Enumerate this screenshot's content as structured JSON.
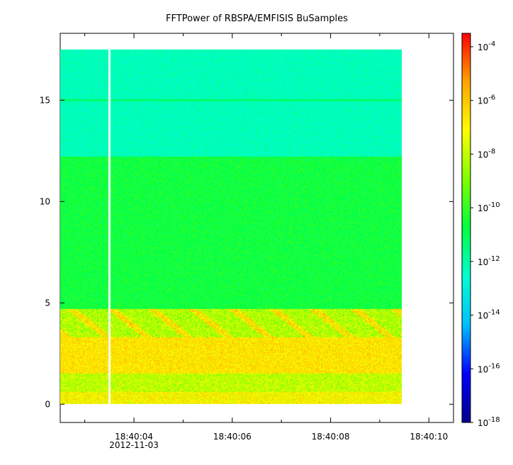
{
  "chart_data": {
    "type": "heatmap",
    "title": "FFTPower of RBSPA/EMFISIS  BuSamples",
    "xlabel": "",
    "ylabel": "",
    "x_ticks": [
      {
        "label": "18:40:04",
        "sublabel": "2012-11-03",
        "t": 4
      },
      {
        "label": "18:40:06",
        "sublabel": "",
        "t": 6
      },
      {
        "label": "18:40:08",
        "sublabel": "",
        "t": 8
      },
      {
        "label": "18:40:10",
        "sublabel": "",
        "t": 10
      }
    ],
    "x_minor_ticks": [
      3,
      5,
      7,
      9
    ],
    "xlim": [
      2.5,
      10.5
    ],
    "data_xlim": [
      2.5,
      9.45
    ],
    "data_gap_x": 3.5,
    "y_ticks": [
      {
        "label": "0",
        "value": 0
      },
      {
        "label": "5",
        "value": 5
      },
      {
        "label": "10",
        "value": 10
      },
      {
        "label": "15",
        "value": 15
      }
    ],
    "ylim": [
      -0.9,
      18.3
    ],
    "data_ylim": [
      0,
      17.5
    ],
    "colorbar": {
      "scale": "log",
      "range_exponent": [
        -18,
        -3.5
      ],
      "tick_labels": [
        {
          "base": "10",
          "exp": "-4",
          "value": -4
        },
        {
          "base": "10",
          "exp": "-6",
          "value": -6
        },
        {
          "base": "10",
          "exp": "-8",
          "value": -8
        },
        {
          "base": "10",
          "exp": "-10",
          "value": -10
        },
        {
          "base": "10",
          "exp": "-12",
          "value": -12
        },
        {
          "base": "10",
          "exp": "-14",
          "value": -14
        },
        {
          "base": "10",
          "exp": "-16",
          "value": -16
        },
        {
          "base": "10",
          "exp": "-18",
          "value": -18
        }
      ],
      "colors": [
        "#00008b",
        "#0000ff",
        "#00bfff",
        "#00ffd0",
        "#00ff40",
        "#80ff00",
        "#ffff00",
        "#ffa500",
        "#ff0000"
      ]
    },
    "bands": [
      {
        "y0": 0,
        "y1": 0.6,
        "log_power": -7.0,
        "noise": 1.2
      },
      {
        "y0": 0.6,
        "y1": 1.5,
        "log_power": -8.0,
        "noise": 1.3
      },
      {
        "y0": 1.5,
        "y1": 3.3,
        "log_power": -6.6,
        "noise": 1.0
      },
      {
        "y0": 3.3,
        "y1": 4.7,
        "log_power": -8.2,
        "noise": 1.5
      },
      {
        "y0": 4.7,
        "y1": 12.2,
        "log_power": -10.6,
        "noise": 0.8
      },
      {
        "y0": 12.2,
        "y1": 17.5,
        "log_power": -12.3,
        "noise": 0.6
      }
    ],
    "lines": [
      {
        "y": 15.0,
        "log_power": -11.2
      }
    ]
  }
}
